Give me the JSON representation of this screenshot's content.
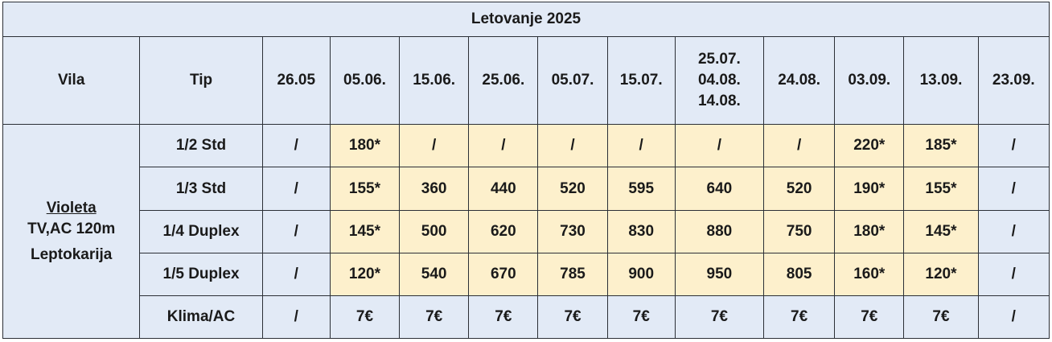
{
  "title": "Letovanje 2025",
  "headers": {
    "vila": "Vila",
    "tip": "Tip",
    "dates": [
      "26.05",
      "05.06.",
      "15.06.",
      "25.06.",
      "05.07.",
      "15.07.",
      "25.07.\n04.08.\n14.08.",
      "24.08.",
      "03.09.",
      "13.09.",
      "23.09."
    ]
  },
  "villa": {
    "name": "Violeta",
    "features": "TV,AC 120m",
    "location": "Leptokarija"
  },
  "rows": [
    {
      "tip": "1/2 Std",
      "cells": [
        "/",
        "180*",
        "/",
        "/",
        "/",
        "/",
        "/",
        "/",
        "220*",
        "185*",
        "/"
      ]
    },
    {
      "tip": "1/3 Std",
      "cells": [
        "/",
        "155*",
        "360",
        "440",
        "520",
        "595",
        "640",
        "520",
        "190*",
        "155*",
        "/"
      ]
    },
    {
      "tip": "1/4 Duplex",
      "cells": [
        "/",
        "145*",
        "500",
        "620",
        "730",
        "830",
        "880",
        "750",
        "180*",
        "145*",
        "/"
      ]
    },
    {
      "tip": "1/5 Duplex",
      "cells": [
        "/",
        "120*",
        "540",
        "670",
        "785",
        "900",
        "950",
        "805",
        "160*",
        "120*",
        "/"
      ]
    },
    {
      "tip": "Klima/AC",
      "cells": [
        "/",
        "7€",
        "7€",
        "7€",
        "7€",
        "7€",
        "7€",
        "7€",
        "7€",
        "7€",
        "/"
      ]
    }
  ],
  "colors": {
    "header_bg": "#e2eaf6",
    "highlight_bg": "#fdf0cc",
    "border": "#2b2f36"
  }
}
